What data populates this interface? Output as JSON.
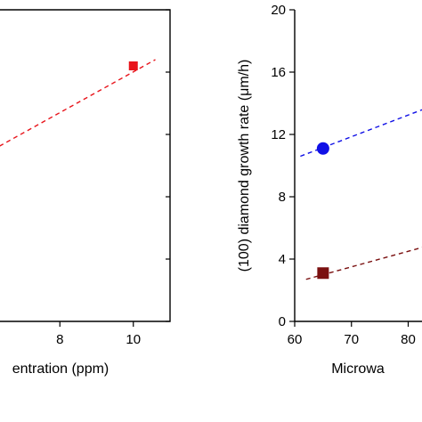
{
  "chart_data": [
    {
      "type": "scatter",
      "xlabel": "entration (ppm)",
      "ylabel": "",
      "xlim": [
        5.4,
        11.0
      ],
      "ylim": [
        0,
        20
      ],
      "x_ticks": [
        {
          "value": 6,
          "label": ""
        },
        {
          "value": 8,
          "label": "8"
        },
        {
          "value": 10,
          "label": "10"
        }
      ],
      "grid": false,
      "series": [
        {
          "marker": "square",
          "color": "#e8141b",
          "points": [
            {
              "x": 10,
              "y": 16.4
            }
          ],
          "fit_line": {
            "x": [
              5.4,
              10.6
            ],
            "y": [
              10.0,
              16.8
            ],
            "style": "dashed"
          }
        }
      ]
    },
    {
      "type": "scatter",
      "xlabel": "Microwa",
      "ylabel": "(100) diamond growth rate (μm/h)",
      "xlim": [
        60,
        84
      ],
      "ylim": [
        0,
        20
      ],
      "x_ticks": [
        {
          "value": 60,
          "label": "60"
        },
        {
          "value": 70,
          "label": "70"
        },
        {
          "value": 80,
          "label": "80"
        }
      ],
      "y_ticks": [
        {
          "value": 0,
          "label": "0"
        },
        {
          "value": 4,
          "label": "4"
        },
        {
          "value": 8,
          "label": "8"
        },
        {
          "value": 12,
          "label": "12"
        },
        {
          "value": 16,
          "label": "16"
        },
        {
          "value": 20,
          "label": "20"
        }
      ],
      "grid": false,
      "series": [
        {
          "marker": "circle",
          "color": "#1010e6",
          "points": [
            {
              "x": 65,
              "y": 11.1
            }
          ],
          "fit_line": {
            "x": [
              61,
              84
            ],
            "y": [
              10.6,
              13.8
            ],
            "style": "dashed"
          }
        },
        {
          "marker": "square",
          "color": "#7a1010",
          "points": [
            {
              "x": 65,
              "y": 3.1
            }
          ],
          "fit_line": {
            "x": [
              62,
              84
            ],
            "y": [
              2.7,
              4.9
            ],
            "style": "dashed"
          }
        }
      ]
    }
  ]
}
